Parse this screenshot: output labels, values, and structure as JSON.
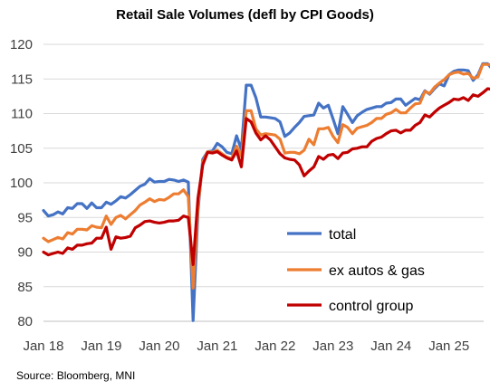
{
  "chart_data": {
    "type": "line",
    "title": "Retail Sale Volumes (defl by CPI Goods)",
    "xlabel": "",
    "ylabel": "",
    "ylim": [
      80,
      120
    ],
    "yticks": [
      "80",
      "85",
      "90",
      "95",
      "100",
      "105",
      "110",
      "115",
      "120"
    ],
    "xticks": [
      "Jan 18",
      "Jan 19",
      "Jan 20",
      "Jan 21",
      "Jan 22",
      "Jan 23",
      "Jan 24",
      "Jan 25"
    ],
    "x_start": "2018-01",
    "grid": "horizontal",
    "legend_position": "lower-right",
    "source": "Source: Bloomberg, MNI",
    "series": [
      {
        "name": "total",
        "color": "#4472C4",
        "values": [
          96.0,
          95.2,
          95.4,
          95.8,
          95.5,
          96.4,
          96.3,
          97.0,
          97.0,
          96.3,
          97.1,
          96.4,
          96.4,
          97.2,
          96.9,
          97.4,
          98.0,
          97.8,
          98.3,
          98.9,
          99.5,
          99.8,
          100.6,
          100.1,
          100.2,
          100.2,
          100.5,
          100.4,
          100.2,
          100.4,
          100.1,
          80.1,
          96.0,
          103.4,
          104.5,
          104.6,
          105.7,
          105.2,
          104.4,
          104.2,
          106.8,
          104.8,
          114.1,
          114.1,
          112.3,
          109.5,
          109.5,
          109.4,
          109.3,
          108.8,
          106.7,
          107.2,
          108.0,
          108.7,
          109.6,
          109.7,
          109.8,
          111.5,
          110.8,
          111.2,
          109.2,
          107.1,
          111.0,
          109.9,
          108.7,
          109.7,
          110.2,
          110.6,
          110.8,
          111.0,
          111.0,
          111.5,
          111.6,
          112.1,
          112.1,
          111.2,
          111.7,
          112.2,
          112.0,
          113.3,
          112.8,
          113.6,
          114.3,
          114.0,
          115.6,
          116.1,
          116.3,
          116.3,
          116.2,
          114.8,
          115.6,
          117.2,
          117.2,
          116.4
        ]
      },
      {
        "name": "ex autos & gas",
        "color": "#ED7D31",
        "values": [
          92.0,
          91.5,
          91.8,
          92.1,
          91.9,
          92.8,
          92.6,
          93.3,
          93.3,
          93.2,
          93.8,
          93.6,
          93.5,
          95.2,
          94.0,
          95.0,
          95.3,
          94.8,
          95.4,
          96.0,
          96.8,
          97.2,
          97.7,
          97.3,
          97.6,
          97.5,
          97.9,
          98.4,
          98.4,
          99.0,
          98.0,
          84.8,
          96.6,
          103.0,
          104.5,
          104.4,
          104.7,
          104.2,
          103.7,
          103.5,
          105.3,
          103.8,
          110.4,
          110.4,
          107.8,
          106.9,
          107.1,
          107.0,
          106.9,
          106.3,
          104.3,
          104.4,
          104.4,
          104.2,
          104.7,
          106.3,
          105.5,
          107.8,
          107.8,
          108.0,
          106.7,
          105.8,
          108.4,
          108.0,
          107.1,
          107.9,
          108.1,
          108.3,
          108.7,
          109.3,
          109.3,
          109.9,
          110.1,
          110.6,
          110.1,
          110.1,
          110.8,
          111.4,
          111.5,
          113.2,
          112.9,
          113.8,
          114.4,
          114.9,
          115.6,
          115.9,
          116.0,
          115.7,
          115.8,
          115.1,
          115.3,
          117.1,
          117.1,
          117.0
        ]
      },
      {
        "name": "control group",
        "color": "#C00000",
        "values": [
          90.0,
          89.6,
          89.8,
          90.0,
          89.8,
          90.6,
          90.4,
          91.0,
          91.0,
          91.2,
          91.3,
          92.0,
          92.0,
          93.6,
          90.4,
          92.2,
          92.0,
          92.1,
          92.3,
          93.5,
          93.9,
          94.4,
          94.5,
          94.3,
          94.2,
          94.3,
          94.5,
          94.5,
          94.6,
          95.2,
          95.0,
          88.2,
          97.8,
          102.6,
          104.4,
          104.3,
          104.5,
          104.0,
          103.6,
          103.3,
          104.6,
          102.3,
          109.3,
          108.8,
          107.2,
          106.2,
          106.8,
          106.2,
          105.2,
          104.2,
          103.6,
          103.4,
          103.3,
          102.6,
          101.0,
          101.7,
          102.3,
          103.8,
          103.4,
          104.0,
          104.1,
          103.5,
          104.3,
          104.4,
          104.9,
          105.0,
          105.2,
          105.2,
          106.0,
          106.4,
          106.6,
          107.1,
          107.5,
          107.6,
          107.2,
          107.6,
          107.6,
          108.3,
          108.7,
          109.8,
          109.5,
          110.2,
          110.8,
          111.2,
          111.6,
          112.1,
          112.0,
          112.3,
          111.9,
          112.7,
          112.5,
          113.0,
          113.6,
          113.5
        ]
      }
    ]
  }
}
